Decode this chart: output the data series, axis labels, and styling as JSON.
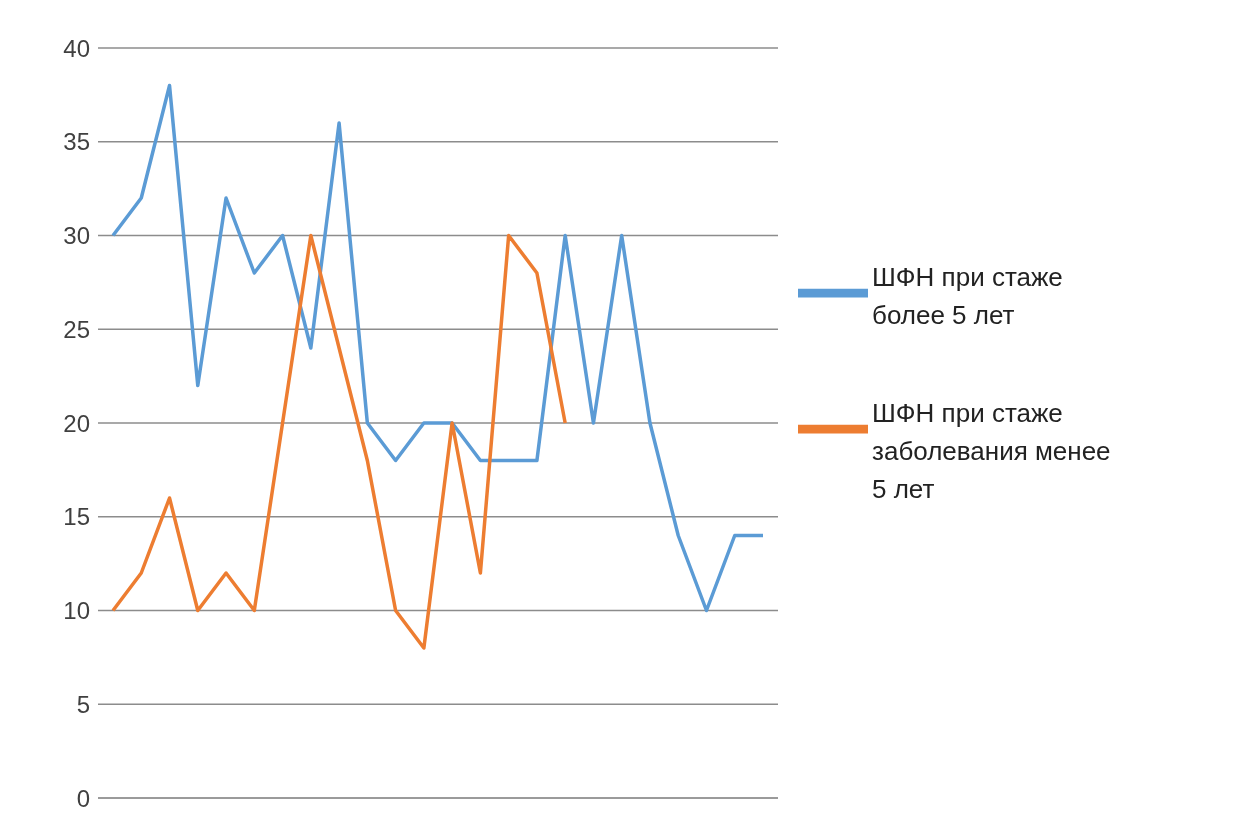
{
  "chart_data": {
    "type": "line",
    "categories": [
      null,
      null,
      null,
      null,
      null,
      null,
      null,
      null,
      null,
      null,
      null,
      null,
      null,
      null,
      null,
      null,
      null,
      null,
      null,
      null,
      null,
      null,
      null,
      null
    ],
    "series": [
      {
        "name": "ШФН при стаже более 5 лет",
        "color": "#5b9bd5",
        "values": [
          30,
          32,
          38,
          22,
          32,
          28,
          30,
          24,
          36,
          20,
          18,
          20,
          20,
          18,
          18,
          18,
          30,
          20,
          30,
          20,
          14,
          10,
          14,
          14
        ]
      },
      {
        "name": "ШФН при стаже заболевания менее 5 лет",
        "color": "#ed7d31",
        "values": [
          10,
          12,
          16,
          10,
          12,
          10,
          20,
          30,
          24,
          18,
          10,
          8,
          20,
          12,
          30,
          28,
          20,
          null,
          null,
          null,
          null,
          null,
          null,
          null
        ]
      }
    ],
    "ylim": [
      0,
      40
    ],
    "yticks": [
      0,
      5,
      10,
      15,
      20,
      25,
      30,
      35,
      40
    ],
    "grid": "y",
    "legend": "right",
    "marker": "none",
    "line_style": "solid"
  }
}
